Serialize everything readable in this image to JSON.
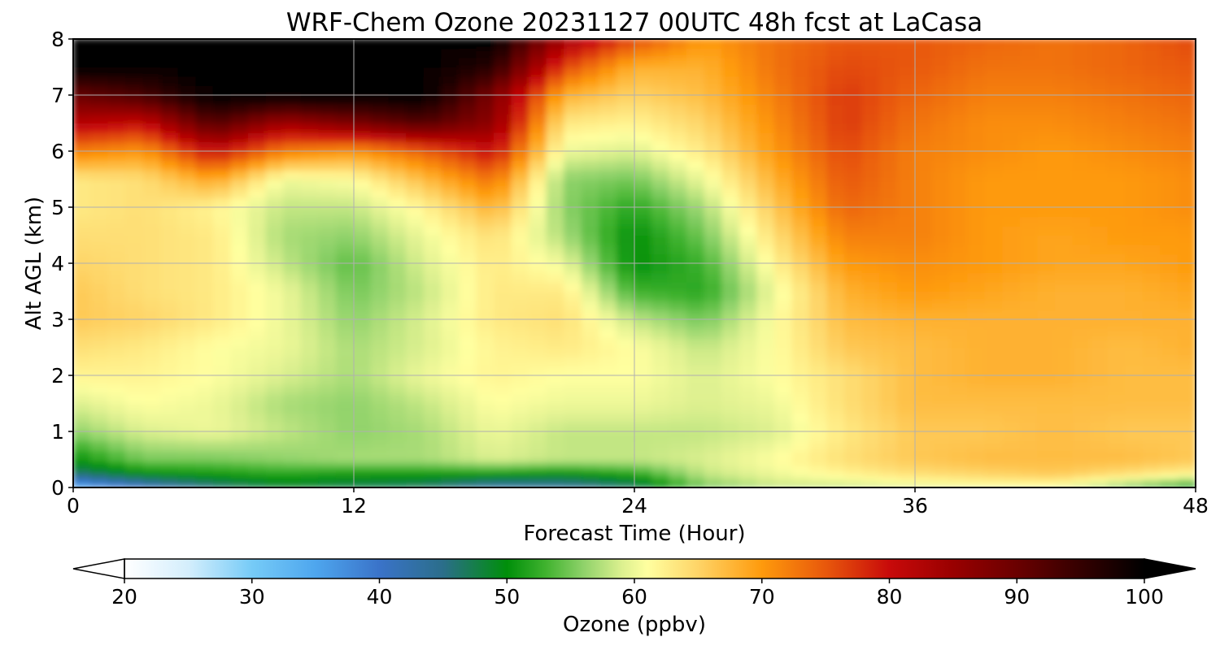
{
  "chart_data": {
    "type": "heatmap",
    "title": "WRF-Chem Ozone  20231127 00UTC 48h fcst at LaCasa",
    "xlabel": "Forecast Time (Hour)",
    "ylabel": "Alt AGL (km)",
    "xlim": [
      0,
      48
    ],
    "ylim": [
      0,
      8
    ],
    "xticks": [
      "0",
      "12",
      "24",
      "36",
      "48"
    ],
    "yticks": [
      "0",
      "1",
      "2",
      "3",
      "4",
      "5",
      "6",
      "7",
      "8"
    ],
    "grid": true,
    "x": [
      0,
      3,
      6,
      9,
      12,
      15,
      18,
      21,
      24,
      27,
      30,
      33,
      36,
      39,
      42,
      45,
      48
    ],
    "y": [
      0,
      0.25,
      0.5,
      1,
      1.5,
      2,
      2.5,
      3,
      3.5,
      4,
      4.5,
      5,
      5.5,
      6,
      6.5,
      7,
      7.5,
      8
    ],
    "z": [
      [
        33,
        40,
        45,
        48,
        47,
        46,
        42,
        43,
        46,
        55,
        58,
        58,
        59,
        60,
        60,
        55,
        50
      ],
      [
        46,
        50,
        51,
        52,
        51,
        51,
        51,
        50,
        52,
        58,
        60,
        62,
        64,
        65,
        66,
        64,
        62
      ],
      [
        50,
        55,
        55,
        56,
        57,
        57,
        59,
        58,
        58,
        59,
        61,
        64,
        66,
        67,
        67,
        67,
        66
      ],
      [
        56,
        59,
        60,
        58,
        56,
        57,
        60,
        58,
        58,
        58,
        59,
        63,
        66,
        66,
        67,
        66,
        66
      ],
      [
        59,
        61,
        60,
        57,
        56,
        58,
        61,
        60,
        60,
        59,
        60,
        64,
        67,
        67,
        67,
        67,
        67
      ],
      [
        62,
        62,
        61,
        59,
        57,
        60,
        62,
        61,
        61,
        59,
        61,
        64,
        67,
        68,
        68,
        67,
        67
      ],
      [
        64,
        63,
        61,
        60,
        57,
        59,
        62,
        63,
        61,
        58,
        61,
        66,
        67,
        68,
        68,
        67,
        68
      ],
      [
        66,
        65,
        63,
        60,
        56,
        59,
        63,
        64,
        58,
        55,
        61,
        67,
        68,
        68,
        68,
        68,
        68
      ],
      [
        66,
        64,
        63,
        60,
        55,
        58,
        63,
        63,
        53,
        52,
        60,
        68,
        70,
        69,
        68,
        68,
        69
      ],
      [
        65,
        64,
        63,
        58,
        54,
        59,
        63,
        60,
        50,
        53,
        62,
        70,
        71,
        70,
        69,
        69,
        70
      ],
      [
        64,
        64,
        63,
        57,
        56,
        60,
        64,
        57,
        50,
        55,
        64,
        72,
        72,
        70,
        69,
        70,
        70
      ],
      [
        63,
        64,
        62,
        58,
        58,
        62,
        68,
        56,
        52,
        57,
        66,
        74,
        72,
        70,
        70,
        70,
        71
      ],
      [
        63,
        64,
        69,
        60,
        61,
        67,
        73,
        56,
        55,
        60,
        68,
        75,
        72,
        70,
        70,
        70,
        71
      ],
      [
        72,
        70,
        80,
        72,
        70,
        74,
        80,
        60,
        59,
        63,
        70,
        76,
        72,
        71,
        70,
        71,
        72
      ],
      [
        82,
        80,
        92,
        84,
        88,
        92,
        86,
        63,
        62,
        65,
        71,
        77,
        73,
        71,
        71,
        72,
        73
      ],
      [
        90,
        93,
        100,
        100,
        100,
        100,
        88,
        68,
        65,
        67,
        72,
        77,
        74,
        72,
        72,
        73,
        74
      ],
      [
        100,
        100,
        100,
        100,
        100,
        100,
        96,
        76,
        68,
        68,
        73,
        76,
        75,
        73,
        73,
        74,
        75
      ],
      [
        100,
        100,
        100,
        100,
        100,
        100,
        100,
        84,
        76,
        70,
        73,
        75,
        75,
        74,
        73,
        74,
        76
      ]
    ],
    "colorbar": {
      "label": "Ozone  (ppbv)",
      "min": 20,
      "max": 100,
      "ticks": [
        "20",
        "30",
        "40",
        "50",
        "60",
        "70",
        "80",
        "90",
        "100"
      ],
      "extend": "both",
      "colors": [
        {
          "v": 20,
          "c": "#ffffff"
        },
        {
          "v": 25,
          "c": "#d4eefc"
        },
        {
          "v": 30,
          "c": "#76cbf7"
        },
        {
          "v": 35,
          "c": "#4ea6ee"
        },
        {
          "v": 40,
          "c": "#3a73c9"
        },
        {
          "v": 45,
          "c": "#2b6e8a"
        },
        {
          "v": 50,
          "c": "#008f0a"
        },
        {
          "v": 53,
          "c": "#3fb22e"
        },
        {
          "v": 56,
          "c": "#8fd26a"
        },
        {
          "v": 59,
          "c": "#dcf08f"
        },
        {
          "v": 61,
          "c": "#ffffa0"
        },
        {
          "v": 65,
          "c": "#fed467"
        },
        {
          "v": 70,
          "c": "#fe9a0c"
        },
        {
          "v": 75,
          "c": "#e8580c"
        },
        {
          "v": 80,
          "c": "#c80a0a"
        },
        {
          "v": 85,
          "c": "#990000"
        },
        {
          "v": 90,
          "c": "#6a0000"
        },
        {
          "v": 95,
          "c": "#340000"
        },
        {
          "v": 100,
          "c": "#000000"
        }
      ]
    }
  }
}
